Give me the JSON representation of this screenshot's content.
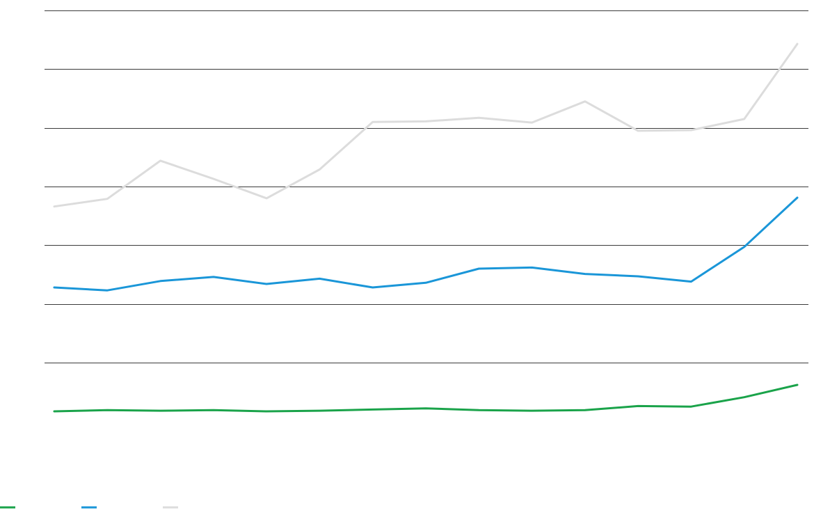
{
  "chart_data": {
    "type": "line",
    "categories": [
      null,
      null,
      null,
      null,
      null,
      null,
      null,
      null,
      null,
      null,
      null,
      null,
      null,
      null,
      null
    ],
    "series": [
      {
        "color": "#1aa34a",
        "values": [
          0.17,
          0.19,
          0.18,
          0.19,
          0.17,
          0.18,
          0.2,
          0.22,
          0.19,
          0.18,
          0.19,
          0.26,
          0.25,
          0.41,
          0.62
        ]
      },
      {
        "color": "#1a96d8",
        "values": [
          2.28,
          2.23,
          2.39,
          2.46,
          2.34,
          2.43,
          2.28,
          2.36,
          2.6,
          2.62,
          2.51,
          2.47,
          2.38,
          2.97,
          3.81
        ]
      },
      {
        "color": "#dcdcdc",
        "values": [
          3.66,
          3.79,
          4.44,
          4.13,
          3.8,
          4.29,
          5.1,
          5.11,
          5.17,
          5.09,
          5.45,
          4.95,
          4.96,
          5.15,
          6.43
        ]
      }
    ],
    "ylim": [
      0,
      7
    ],
    "yticks": [
      1,
      2,
      3,
      4,
      5,
      6,
      7
    ],
    "grid": true
  }
}
